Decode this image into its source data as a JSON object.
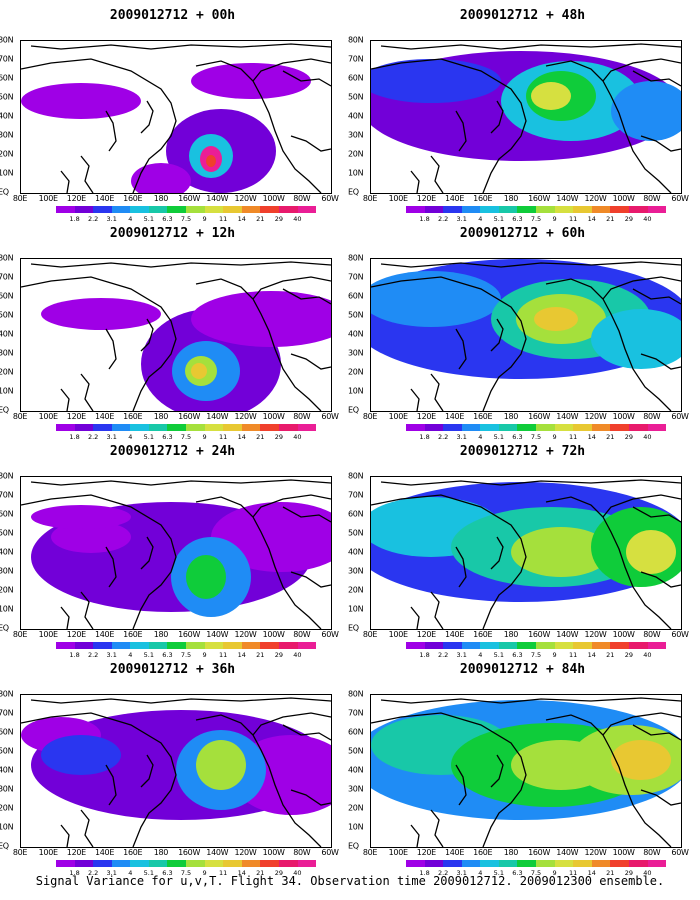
{
  "panels": [
    {
      "title": "2009012712 + 00h",
      "blobs": [
        [
          200,
          110,
          55,
          42,
          1
        ],
        [
          190,
          115,
          22,
          22,
          4
        ],
        [
          190,
          118,
          11,
          13,
          13
        ],
        [
          190,
          120,
          5,
          6,
          11
        ],
        [
          60,
          60,
          60,
          18,
          0
        ],
        [
          230,
          40,
          60,
          18,
          0
        ],
        [
          140,
          140,
          30,
          18,
          0
        ]
      ]
    },
    {
      "title": "2009012712 + 12h",
      "blobs": [
        [
          190,
          105,
          70,
          55,
          1
        ],
        [
          250,
          60,
          80,
          28,
          0
        ],
        [
          80,
          55,
          60,
          16,
          0
        ],
        [
          185,
          112,
          34,
          30,
          3
        ],
        [
          180,
          112,
          16,
          15,
          7
        ],
        [
          178,
          112,
          8,
          8,
          9
        ]
      ]
    },
    {
      "title": "2009012712 + 24h",
      "blobs": [
        [
          150,
          80,
          140,
          55,
          1
        ],
        [
          260,
          60,
          70,
          35,
          0
        ],
        [
          190,
          100,
          40,
          40,
          3
        ],
        [
          185,
          100,
          20,
          22,
          6
        ],
        [
          70,
          60,
          40,
          16,
          0
        ],
        [
          60,
          40,
          50,
          12,
          0
        ]
      ]
    },
    {
      "title": "2009012712 + 36h",
      "blobs": [
        [
          160,
          70,
          150,
          55,
          1
        ],
        [
          270,
          80,
          60,
          40,
          0
        ],
        [
          40,
          40,
          40,
          18,
          0
        ],
        [
          200,
          75,
          45,
          40,
          3
        ],
        [
          200,
          70,
          25,
          25,
          7
        ],
        [
          60,
          60,
          40,
          20,
          2
        ]
      ]
    },
    {
      "title": "2009012712 + 48h",
      "blobs": [
        [
          150,
          65,
          160,
          55,
          1
        ],
        [
          60,
          40,
          70,
          22,
          2
        ],
        [
          200,
          60,
          70,
          40,
          4
        ],
        [
          190,
          55,
          35,
          25,
          6
        ],
        [
          180,
          55,
          20,
          14,
          8
        ],
        [
          280,
          70,
          40,
          30,
          3
        ]
      ]
    },
    {
      "title": "2009012712 + 60h",
      "blobs": [
        [
          150,
          60,
          170,
          60,
          2
        ],
        [
          60,
          40,
          70,
          28,
          3
        ],
        [
          200,
          60,
          80,
          40,
          5
        ],
        [
          190,
          60,
          45,
          25,
          7
        ],
        [
          185,
          60,
          22,
          12,
          9
        ],
        [
          270,
          80,
          50,
          30,
          4
        ]
      ]
    },
    {
      "title": "2009012712 + 72h",
      "blobs": [
        [
          150,
          65,
          170,
          60,
          2
        ],
        [
          60,
          50,
          70,
          30,
          4
        ],
        [
          180,
          70,
          100,
          40,
          5
        ],
        [
          190,
          75,
          50,
          25,
          7
        ],
        [
          270,
          70,
          50,
          40,
          6
        ],
        [
          280,
          75,
          25,
          22,
          8
        ]
      ]
    },
    {
      "title": "2009012712 + 84h",
      "blobs": [
        [
          150,
          65,
          170,
          60,
          3
        ],
        [
          70,
          50,
          70,
          30,
          5
        ],
        [
          180,
          70,
          100,
          42,
          6
        ],
        [
          190,
          70,
          50,
          25,
          7
        ],
        [
          260,
          65,
          60,
          35,
          7
        ],
        [
          270,
          65,
          30,
          20,
          9
        ]
      ]
    }
  ],
  "lat_labels": [
    "80N",
    "70N",
    "60N",
    "50N",
    "40N",
    "30N",
    "20N",
    "10N",
    "EQ"
  ],
  "lon_labels": [
    "80E",
    "100E",
    "120E",
    "140E",
    "160E",
    "180",
    "160W",
    "140W",
    "120W",
    "100W",
    "80W",
    "60W"
  ],
  "colorbar": {
    "labels": [
      "1.8",
      "2.2",
      "3.1",
      "4",
      "5.1",
      "6.3",
      "7.5",
      "9",
      "11",
      "14",
      "21",
      "29",
      "40"
    ],
    "colors": [
      "#9f00e6",
      "#7200d8",
      "#2a36f0",
      "#1f8cf5",
      "#19c1e0",
      "#18c8a8",
      "#0fcc3a",
      "#a5e03c",
      "#d6e040",
      "#e8c832",
      "#f08a28",
      "#f0402c",
      "#e81a6c",
      "#ea1e96"
    ]
  },
  "caption": "Signal Variance for u,v,T. Flight 34. Observation time 2009012712. 2009012300 ensemble."
}
